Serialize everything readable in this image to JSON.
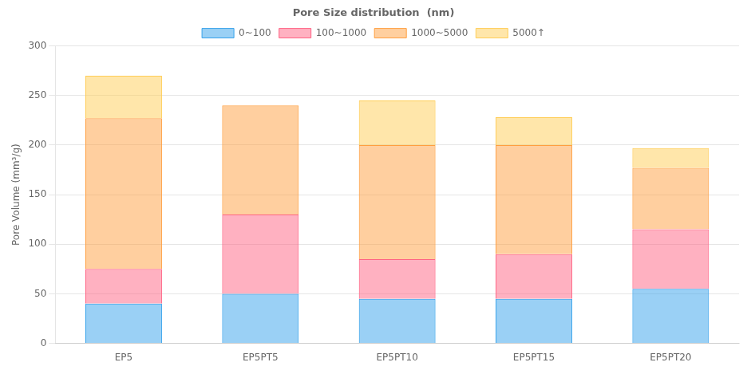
{
  "chart_data": {
    "type": "bar",
    "stacked": true,
    "categories": [
      "EP5",
      "EP5PT5",
      "EP5PT10",
      "EP5PT15",
      "EP5PT20"
    ],
    "series": [
      {
        "name": "0~100",
        "values": [
          40,
          50,
          45,
          45,
          55
        ]
      },
      {
        "name": "100~1000",
        "values": [
          35,
          80,
          40,
          45,
          60
        ]
      },
      {
        "name": "1000~5000",
        "values": [
          152,
          110,
          115,
          110,
          62
        ]
      },
      {
        "name": "5000↑",
        "values": [
          43,
          0,
          45,
          28,
          20
        ]
      }
    ],
    "ylabel": "Pore Volume (mm³/g)",
    "legend_title": "Pore Size distribution  (nm)",
    "legend": "top",
    "ylim": [
      0,
      300
    ],
    "yticks": [
      0,
      50,
      100,
      150,
      200,
      250,
      300
    ],
    "grid": true
  }
}
